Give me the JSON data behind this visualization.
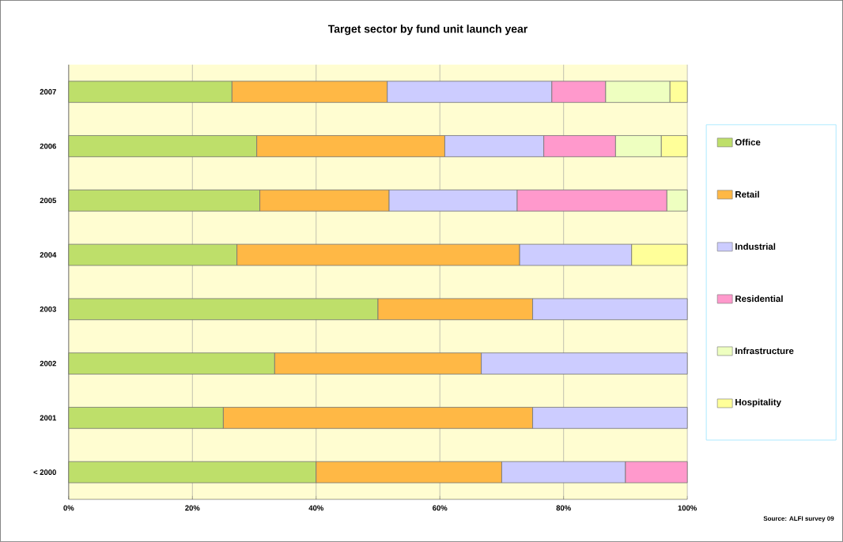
{
  "chart_data": {
    "type": "bar",
    "orientation": "horizontal",
    "stacked": true,
    "title": "Target sector by fund unit launch year",
    "categories": [
      "2007",
      "2006",
      "2005",
      "2004",
      "2003",
      "2002",
      "2001",
      "< 2000"
    ],
    "series": [
      {
        "name": "Office",
        "color": "#bedf6a",
        "values": [
          26.4,
          30.4,
          30.9,
          27.2,
          50,
          33.3,
          25,
          40
        ]
      },
      {
        "name": "Retail",
        "color": "#ffb845",
        "values": [
          25.1,
          30.4,
          20.9,
          45.7,
          25,
          33.4,
          50,
          30
        ]
      },
      {
        "name": "Industrial",
        "color": "#ccccff",
        "values": [
          26.6,
          16.0,
          20.7,
          18.1,
          25,
          33.3,
          25,
          20
        ]
      },
      {
        "name": "Residential",
        "color": "#ff99cc",
        "values": [
          8.7,
          11.6,
          24.2,
          null,
          null,
          null,
          null,
          10
        ]
      },
      {
        "name": "Infrastructure",
        "color": "#eeffc0",
        "values": [
          10.4,
          7.4,
          3.3,
          null,
          null,
          null,
          null,
          null
        ]
      },
      {
        "name": "Hospitality",
        "color": "#ffff99",
        "values": [
          2.8,
          4.2,
          null,
          9.0,
          null,
          null,
          null,
          null
        ]
      }
    ],
    "xlim": [
      0,
      100
    ],
    "xticks": [
      {
        "value": 0,
        "label": "0%"
      },
      {
        "value": 20,
        "label": "20%"
      },
      {
        "value": 40,
        "label": "40%"
      },
      {
        "value": 60,
        "label": "60%"
      },
      {
        "value": 80,
        "label": "80%"
      },
      {
        "value": 100,
        "label": "100%"
      }
    ],
    "grid": "x",
    "legend": "right",
    "annotations": [
      "Source: ALFI survey 09"
    ]
  }
}
